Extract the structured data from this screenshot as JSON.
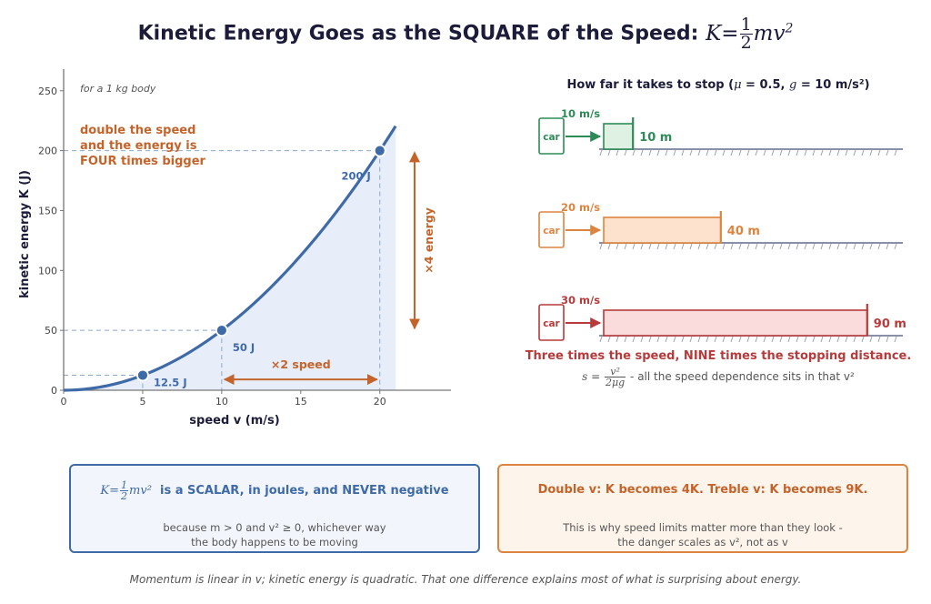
{
  "title": {
    "text": "Kinetic Energy Goes as the SQUARE of the Speed:",
    "eq_lhs": "K",
    "eq_eq": "=",
    "eq_num": "1",
    "eq_den": "2",
    "eq_rhs": "mv",
    "eq_sup": "2"
  },
  "chart_data": {
    "type": "line",
    "note": "for a 1 kg body",
    "annotation": "double the speed\nand the energy is\nFOUR times bigger",
    "xlabel": "speed v  (m/s)",
    "ylabel": "kinetic energy K  (J)",
    "xlim": [
      0,
      24.5
    ],
    "ylim": [
      0,
      265
    ],
    "x_ticks": [
      0,
      5,
      10,
      15,
      20
    ],
    "y_ticks": [
      0,
      50,
      100,
      150,
      200,
      250
    ],
    "series": [
      {
        "mass_kg": 1,
        "x_range": [
          0,
          21
        ],
        "formula": "K = 0.5 * m * v^2"
      }
    ],
    "points": [
      {
        "x": 5,
        "y": 12.5,
        "label": "12.5 J"
      },
      {
        "x": 10,
        "y": 50,
        "label": "50 J"
      },
      {
        "x": 20,
        "y": 200,
        "label": "200 J"
      }
    ],
    "speed_arrow": {
      "from": 10,
      "to": 20,
      "label": "×2 speed"
    },
    "energy_arrow": {
      "from": 50,
      "to": 200,
      "label": "×4 energy"
    },
    "colors": {
      "curve": "#3f6aa8",
      "fill": "#e7eef9",
      "accent": "#c4642a",
      "axis": "#777777",
      "guide": "#8aa9c9"
    }
  },
  "stopping": {
    "heading_pre": "How far it takes to stop  (",
    "heading_mu": "μ",
    "heading_mid": " = 0.5, ",
    "heading_g": "g",
    "heading_post": " = 10 m/s²)",
    "car_label": "car",
    "rows": [
      {
        "speed": "10 m/s",
        "distance_m": 10,
        "distance": "10 m",
        "color": "#2e8b57",
        "fill": "#dff1e3"
      },
      {
        "speed": "20 m/s",
        "distance_m": 40,
        "distance": "40 m",
        "color": "#dd8440",
        "fill": "#fde3cd"
      },
      {
        "speed": "30 m/s",
        "distance_m": 90,
        "distance": "90 m",
        "color": "#b83a3a",
        "fill": "#fbdcdc"
      }
    ],
    "conclusion": "Three times the speed, NINE times the stopping distance.",
    "formula_lhs": "s =",
    "formula_num": "v²",
    "formula_den": "2μg",
    "formula_text": "- all the speed dependence sits in that v²"
  },
  "box_left": {
    "eq_lhs": "K",
    "eq_eq": "=",
    "eq_num": "1",
    "eq_den": "2",
    "eq_rhs": "mv²",
    "head": "is a SCALAR, in joules, and NEVER negative",
    "sub1": "because m > 0 and v² ≥ 0, whichever way",
    "sub2": "the body happens to be moving"
  },
  "box_right": {
    "head": "Double v: K becomes 4K.   Treble v: K becomes 9K.",
    "sub1": "This is why speed limits matter more than they look -",
    "sub2": "the danger scales as v², not as v"
  },
  "footer": "Momentum is linear in v; kinetic energy is quadratic. That one difference explains most of what is surprising about energy."
}
